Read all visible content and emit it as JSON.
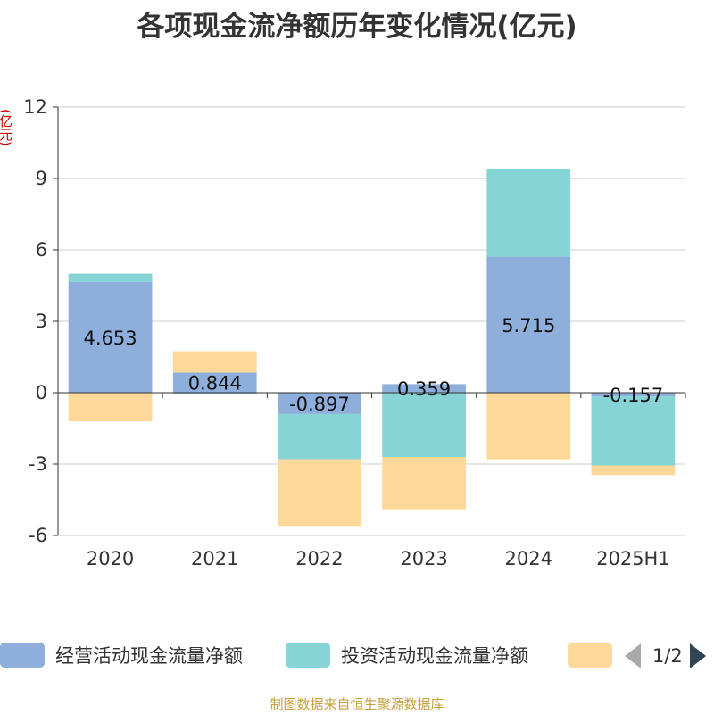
{
  "title": "各项现金流净额历年变化情况(亿元)",
  "y_unit": "(亿元)",
  "source": "制图数据来自恒生聚源数据库",
  "legend": {
    "items": [
      {
        "label": "经营活动现金流量净额",
        "color": "#8eaedb"
      },
      {
        "label": "投资活动现金流量净额",
        "color": "#86d4d6"
      },
      {
        "label": "",
        "color": "#fdd898"
      }
    ],
    "page": "1/2"
  },
  "chart_data": {
    "type": "bar",
    "stacked": true,
    "categories": [
      "2020",
      "2021",
      "2022",
      "2023",
      "2024",
      "2025H1"
    ],
    "ylim": [
      -6,
      12
    ],
    "yticks": [
      -6,
      -3,
      0,
      3,
      6,
      9,
      12
    ],
    "ytick_labels": [
      "-6",
      "-3",
      "0",
      "3",
      "6",
      "9",
      "12"
    ],
    "grid": true,
    "series": [
      {
        "name": "经营活动现金流量净额",
        "color": "#8eaedb",
        "values": [
          4.653,
          0.844,
          -0.897,
          0.359,
          5.715,
          -0.157
        ],
        "labels": [
          "4.653",
          "0.844",
          "-0.897",
          "0.359",
          "5.715",
          "-0.157"
        ]
      },
      {
        "name": "投资活动现金流量净额",
        "color": "#86d4d6",
        "values": [
          0.35,
          -0.05,
          -1.9,
          -2.7,
          3.7,
          -2.9
        ]
      },
      {
        "color": "#fdd898",
        "values": [
          -1.2,
          0.9,
          -2.8,
          -2.2,
          -2.8,
          -0.4
        ]
      }
    ]
  }
}
